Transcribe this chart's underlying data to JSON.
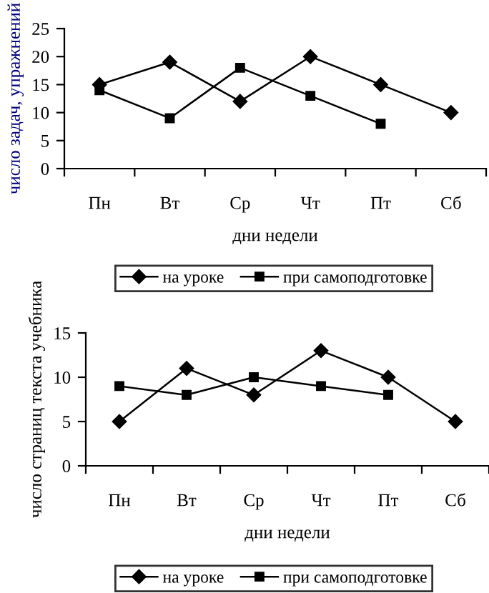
{
  "chart_data": [
    {
      "type": "line",
      "ylabel": "число задач, упражнений",
      "xlabel": "дни недели",
      "categories": [
        "Пн",
        "Вт",
        "Ср",
        "Чт",
        "Пт",
        "Сб"
      ],
      "ylim": [
        0,
        25
      ],
      "yticks": [
        0,
        5,
        10,
        15,
        20,
        25
      ],
      "grid": false,
      "legend": "bottom",
      "series": [
        {
          "name": "на уроке",
          "color": "#000000",
          "marker": "diamond",
          "values": [
            15,
            19,
            12,
            20,
            15,
            10
          ]
        },
        {
          "name": "при самоподготовке",
          "color": "#000000",
          "marker": "square",
          "values": [
            14,
            9,
            18,
            13,
            8,
            null
          ]
        }
      ]
    },
    {
      "type": "line",
      "ylabel": "число страниц текста учебника",
      "xlabel": "дни недели",
      "categories": [
        "Пн",
        "Вт",
        "Ср",
        "Чт",
        "Пт",
        "Сб"
      ],
      "ylim": [
        0,
        15
      ],
      "yticks": [
        0,
        5,
        10,
        15
      ],
      "grid": false,
      "legend": "bottom",
      "series": [
        {
          "name": "на уроке",
          "color": "#000000",
          "marker": "diamond",
          "values": [
            5,
            11,
            8,
            13,
            10,
            5
          ]
        },
        {
          "name": "при самоподготовке",
          "color": "#000000",
          "marker": "square",
          "values": [
            9,
            8,
            10,
            9,
            8,
            null
          ]
        }
      ]
    }
  ]
}
